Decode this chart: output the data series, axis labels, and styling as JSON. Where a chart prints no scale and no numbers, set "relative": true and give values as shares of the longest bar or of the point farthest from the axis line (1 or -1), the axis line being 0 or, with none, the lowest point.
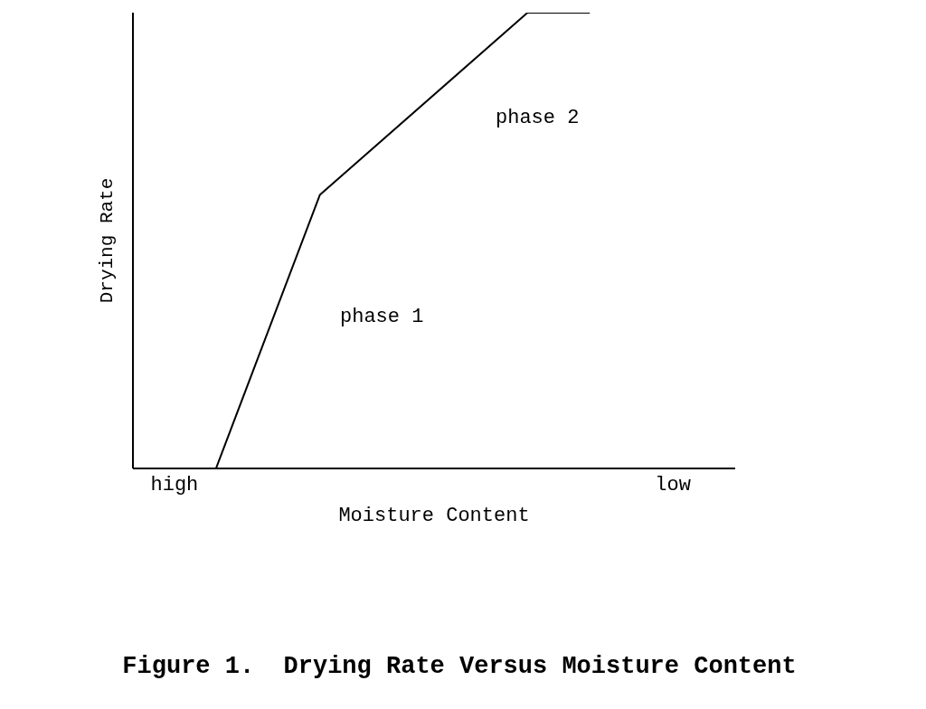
{
  "chart_data": {
    "type": "line",
    "title": "Figure 1.  Drying Rate Versus Moisture Content",
    "xlabel": "Moisture Content",
    "ylabel": "Drying Rate",
    "relative": true,
    "marker": "none",
    "line_style": "solid",
    "categories": [
      null,
      null,
      "high",
      null,
      null,
      null,
      null,
      null,
      null,
      null,
      null,
      null,
      null,
      null,
      null,
      null,
      null,
      null,
      null,
      null,
      null,
      null,
      null,
      null,
      null,
      null,
      "low",
      null,
      null,
      null
    ],
    "series": [
      {
        "color": "#000000",
        "values": [
          null,
          null,
          null,
          null,
          0,
          null,
          null,
          null,
          null,
          0.6,
          null,
          null,
          null,
          null,
          null,
          null,
          null,
          null,
          null,
          1,
          null,
          null,
          1,
          null,
          null,
          null,
          null,
          null,
          null,
          null
        ]
      }
    ],
    "annotations": [
      "phase 1",
      "phase 2"
    ]
  }
}
